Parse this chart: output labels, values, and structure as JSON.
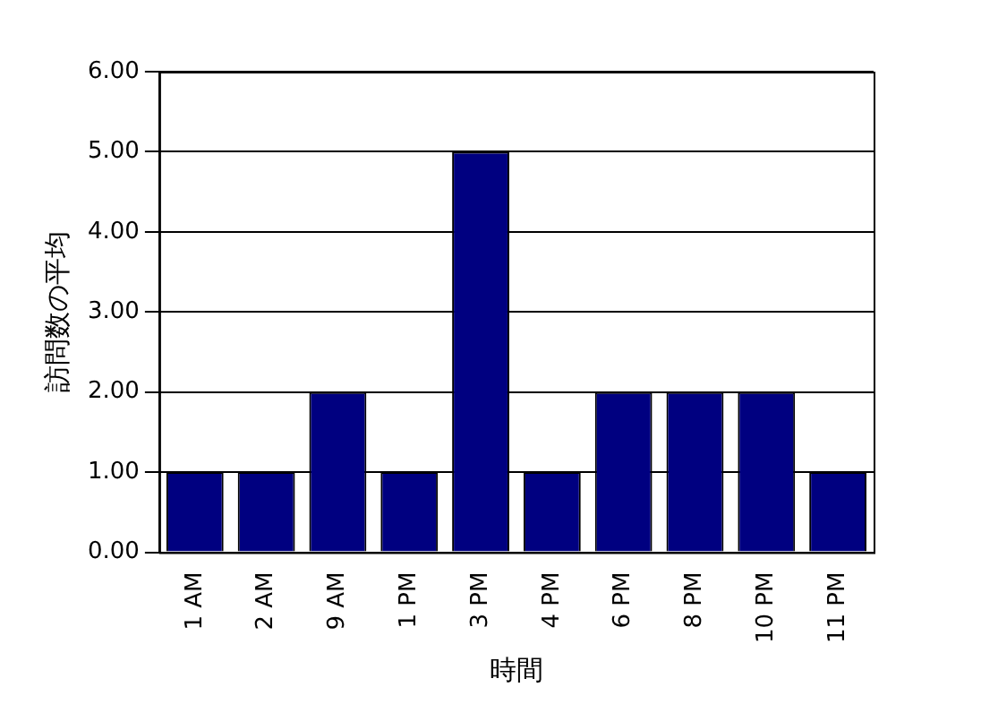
{
  "chart_data": {
    "type": "bar",
    "xlabel": "時間",
    "ylabel": "訪問数の平均",
    "categories": [
      "1 AM",
      "2 AM",
      "9 AM",
      "1 PM",
      "3 PM",
      "4 PM",
      "6 PM",
      "8 PM",
      "10 PM",
      "11 PM"
    ],
    "values": [
      1,
      1,
      2,
      1,
      5,
      1,
      2,
      2,
      2,
      1
    ],
    "color": "#000080",
    "ylim": [
      0,
      6
    ],
    "yticks": [
      {
        "value": 0,
        "label": "0.00"
      },
      {
        "value": 1,
        "label": "1.00"
      },
      {
        "value": 2,
        "label": "2.00"
      },
      {
        "value": 3,
        "label": "3.00"
      },
      {
        "value": 4,
        "label": "4.00"
      },
      {
        "value": 5,
        "label": "5.00"
      },
      {
        "value": 6,
        "label": "6.00"
      }
    ],
    "grid": "y",
    "legend": false
  }
}
